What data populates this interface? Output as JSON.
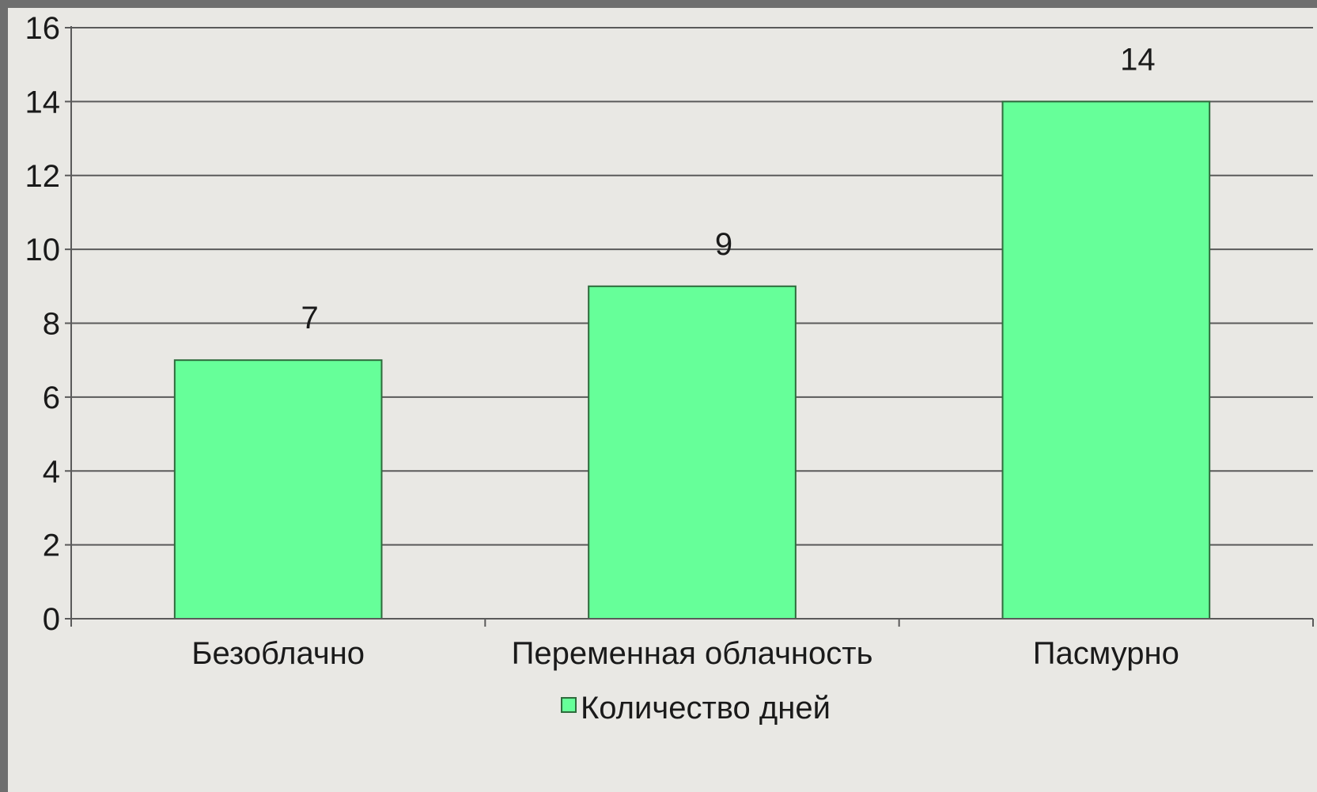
{
  "chart_data": {
    "type": "bar",
    "categories": [
      "Безоблачно",
      "Переменная облачность",
      "Пасмурно"
    ],
    "series": [
      {
        "name": "Количество дней",
        "values": [
          7,
          9,
          14
        ]
      }
    ],
    "y_ticks": [
      "0",
      "2",
      "4",
      "6",
      "8",
      "10",
      "12",
      "14",
      "16"
    ],
    "ylim": [
      0,
      16
    ],
    "grid": true,
    "legend_position": "bottom",
    "colors": {
      "bar_fill": "#66ff99",
      "bar_stroke": "#2e6b3c",
      "grid": "#5a5a5a",
      "background": "#e9e8e4",
      "frame": "#6e6e6e"
    }
  }
}
